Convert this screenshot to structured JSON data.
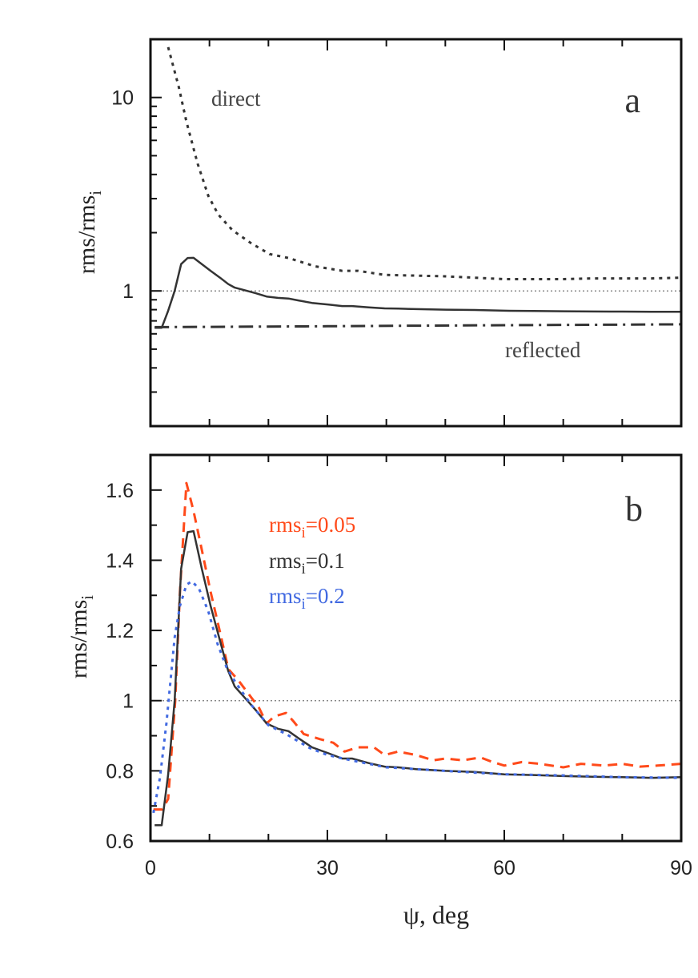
{
  "chart_data": [
    {
      "panel_label": "a",
      "type": "line",
      "ylabel": "rms/rms",
      "ylabel_sub": "i",
      "yscale": "log",
      "xlim": [
        0,
        90
      ],
      "ylim": [
        0.2,
        20
      ],
      "yticks": [
        {
          "value": 1,
          "label": "1"
        },
        {
          "value": 10,
          "label": "10"
        }
      ],
      "reference_line": 1,
      "annotations": [
        {
          "text": "direct",
          "series": "direct"
        },
        {
          "text": "reflected",
          "series": "reflected"
        }
      ],
      "series": [
        {
          "key": "direct",
          "style": "dotted",
          "color": "#333333",
          "x": [
            3,
            4.8,
            6.1,
            8,
            9.8,
            11.5,
            13.9,
            17,
            20.2,
            23.4,
            27.9,
            32.5,
            35.2,
            39.7,
            45,
            50,
            55,
            60,
            65,
            70,
            75,
            80,
            85,
            90
          ],
          "y": [
            18.2,
            11.3,
            7.5,
            4.55,
            3.1,
            2.48,
            2.06,
            1.77,
            1.55,
            1.48,
            1.34,
            1.27,
            1.27,
            1.21,
            1.2,
            1.19,
            1.17,
            1.15,
            1.15,
            1.15,
            1.16,
            1.16,
            1.16,
            1.17
          ]
        },
        {
          "key": "total",
          "style": "solid",
          "color": "#333333",
          "x": [
            0.7,
            1.9,
            3,
            4.1,
            5.2,
            6.3,
            7.3,
            8.7,
            10.2,
            11.8,
            13.2,
            14.3,
            15.9,
            17.9,
            19.7,
            21.6,
            23.4,
            25.1,
            27.4,
            30.2,
            32.5,
            34.2,
            37,
            39.7,
            42,
            45,
            50,
            55,
            60,
            65,
            70,
            75,
            80,
            85,
            90
          ],
          "y": [
            0.645,
            0.645,
            0.79,
            1.0,
            1.376,
            1.48,
            1.483,
            1.376,
            1.27,
            1.17,
            1.084,
            1.04,
            1.01,
            0.972,
            0.935,
            0.92,
            0.913,
            0.893,
            0.867,
            0.85,
            0.835,
            0.835,
            0.822,
            0.812,
            0.81,
            0.805,
            0.8,
            0.797,
            0.79,
            0.788,
            0.785,
            0.783,
            0.782,
            0.78,
            0.78
          ]
        },
        {
          "key": "reflected",
          "style": "dashdot",
          "color": "#333333",
          "x": [
            0.7,
            15,
            30,
            45,
            60,
            75,
            90
          ],
          "y": [
            0.65,
            0.653,
            0.657,
            0.661,
            0.665,
            0.668,
            0.672
          ]
        }
      ]
    },
    {
      "panel_label": "b",
      "type": "line",
      "xlabel": "ψ, deg",
      "ylabel": "rms/rms",
      "ylabel_sub": "i",
      "xlim": [
        0,
        90
      ],
      "ylim": [
        0.6,
        1.7
      ],
      "xticks": [
        {
          "value": 0,
          "label": "0"
        },
        {
          "value": 30,
          "label": "30"
        },
        {
          "value": 60,
          "label": "60"
        },
        {
          "value": 90,
          "label": "90"
        }
      ],
      "yticks": [
        {
          "value": 0.6,
          "label": "0.6"
        },
        {
          "value": 0.8,
          "label": "0.8"
        },
        {
          "value": 1,
          "label": "1"
        },
        {
          "value": 1.2,
          "label": "1.2"
        },
        {
          "value": 1.4,
          "label": "1.4"
        },
        {
          "value": 1.6,
          "label": "1.6"
        }
      ],
      "reference_line": 1,
      "legend_placement": "top-center",
      "series": [
        {
          "name": "rms",
          "name_sub": "i",
          "name_value": "=0.05",
          "style": "dashed",
          "color": "#ff4a1a",
          "x": [
            0.5,
            2,
            3,
            4.2,
            5,
            6.1,
            7.3,
            8.7,
            10.2,
            12,
            13.2,
            14.8,
            16.6,
            18.4,
            19.7,
            21,
            23,
            24.3,
            26,
            28.8,
            31,
            32.9,
            35.2,
            37.9,
            39.7,
            42,
            45,
            48,
            50,
            53,
            56,
            58,
            60,
            63,
            66,
            70,
            73,
            77,
            80,
            83,
            86,
            90
          ],
          "y": [
            0.69,
            0.69,
            0.72,
            1.0,
            1.31,
            1.62,
            1.54,
            1.43,
            1.31,
            1.18,
            1.09,
            1.06,
            1.02,
            0.98,
            0.935,
            0.955,
            0.965,
            0.94,
            0.905,
            0.89,
            0.88,
            0.855,
            0.867,
            0.867,
            0.845,
            0.855,
            0.845,
            0.83,
            0.835,
            0.83,
            0.838,
            0.825,
            0.815,
            0.825,
            0.82,
            0.81,
            0.82,
            0.815,
            0.82,
            0.812,
            0.815,
            0.82
          ]
        },
        {
          "name": "rms",
          "name_sub": "i",
          "name_value": "=0.1",
          "style": "solid",
          "color": "#333333",
          "x": [
            0.7,
            1.9,
            3,
            4.1,
            5.2,
            6.3,
            7.3,
            8.7,
            10.2,
            11.8,
            13.2,
            14.3,
            15.9,
            17.9,
            19.7,
            21.6,
            23.4,
            25.1,
            27.4,
            30.2,
            32.5,
            34.2,
            37,
            39.7,
            42,
            45,
            50,
            55,
            60,
            65,
            70,
            75,
            80,
            85,
            90
          ],
          "y": [
            0.645,
            0.645,
            0.79,
            1.0,
            1.376,
            1.48,
            1.483,
            1.376,
            1.27,
            1.17,
            1.084,
            1.04,
            1.01,
            0.972,
            0.935,
            0.92,
            0.913,
            0.893,
            0.867,
            0.85,
            0.835,
            0.835,
            0.822,
            0.812,
            0.81,
            0.805,
            0.8,
            0.797,
            0.79,
            0.788,
            0.785,
            0.783,
            0.782,
            0.78,
            0.782
          ]
        },
        {
          "name": "rms",
          "name_sub": "i",
          "name_value": "=0.2",
          "style": "dotted",
          "color": "#4169e1",
          "x": [
            0.5,
            1.6,
            2.7,
            4.1,
            5,
            6.1,
            7,
            8.2,
            9.8,
            11.4,
            12.9,
            14.5,
            17,
            20,
            23,
            27,
            30,
            34,
            40,
            45,
            50,
            55,
            60,
            70,
            80,
            90
          ],
          "y": [
            0.68,
            0.78,
            0.935,
            1.18,
            1.27,
            1.33,
            1.34,
            1.32,
            1.255,
            1.16,
            1.095,
            1.05,
            0.99,
            0.93,
            0.905,
            0.865,
            0.845,
            0.83,
            0.81,
            0.805,
            0.8,
            0.795,
            0.79,
            0.787,
            0.782,
            0.78
          ]
        }
      ]
    }
  ]
}
